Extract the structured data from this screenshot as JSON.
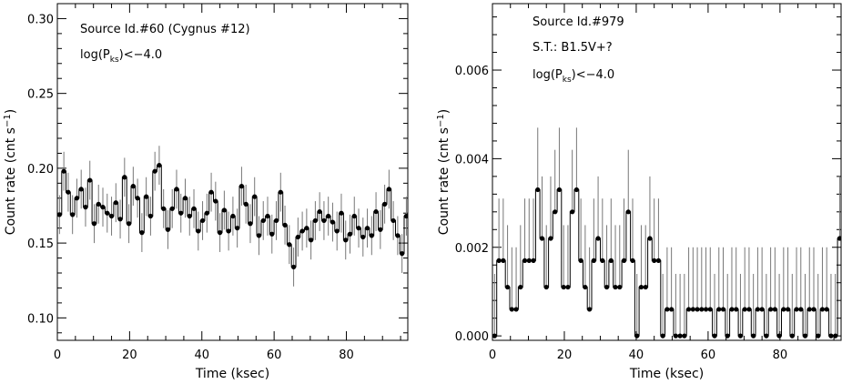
{
  "chart_data": [
    {
      "type": "line",
      "subtype": "binned-light-curve-with-error-bars",
      "title": "",
      "annotations": [
        "Source Id.#60 (Cygnus #12)",
        "log(P",
        "ks",
        ")<−4.0"
      ],
      "xlabel": "Time (ksec)",
      "ylabel": "Count rate (cnt s",
      "ylabel_sup": "−1",
      "ylabel_close": ")",
      "xlim": [
        0,
        97
      ],
      "ylim": [
        0.085,
        0.31
      ],
      "xticks": [
        0,
        20,
        40,
        60,
        80
      ],
      "yticks": [
        0.1,
        0.15,
        0.2,
        0.25,
        0.3
      ],
      "xticklabels": [
        "0",
        "20",
        "40",
        "60",
        "80"
      ],
      "yticklabels": [
        "0.10",
        "0.15",
        "0.20",
        "0.25",
        "0.30"
      ],
      "bin_width": 1.2,
      "grid": false,
      "series": [
        {
          "x": [
            0.6,
            1.8,
            3.0,
            4.2,
            5.4,
            6.6,
            7.8,
            9.0,
            10.2,
            11.4,
            12.6,
            13.8,
            15.0,
            16.2,
            17.4,
            18.6,
            19.8,
            21.0,
            22.2,
            23.4,
            24.6,
            25.8,
            27.0,
            28.2,
            29.4,
            30.6,
            31.8,
            33.0,
            34.2,
            35.4,
            36.6,
            37.8,
            39.0,
            40.2,
            41.4,
            42.6,
            43.8,
            45.0,
            46.2,
            47.4,
            48.6,
            49.8,
            51.0,
            52.2,
            53.4,
            54.6,
            55.8,
            57.0,
            58.2,
            59.4,
            60.6,
            61.8,
            63.0,
            64.2,
            65.4,
            66.6,
            67.8,
            69.0,
            70.2,
            71.4,
            72.6,
            73.8,
            75.0,
            76.2,
            77.4,
            78.6,
            79.8,
            81.0,
            82.2,
            83.4,
            84.6,
            85.8,
            87.0,
            88.2,
            89.4,
            90.6,
            91.8,
            93.0,
            94.2,
            95.4,
            96.6
          ],
          "y": [
            0.169,
            0.198,
            0.184,
            0.169,
            0.18,
            0.186,
            0.174,
            0.192,
            0.163,
            0.176,
            0.174,
            0.17,
            0.168,
            0.177,
            0.166,
            0.194,
            0.163,
            0.188,
            0.18,
            0.157,
            0.181,
            0.168,
            0.198,
            0.202,
            0.173,
            0.159,
            0.173,
            0.186,
            0.17,
            0.18,
            0.168,
            0.173,
            0.158,
            0.165,
            0.17,
            0.184,
            0.178,
            0.157,
            0.172,
            0.158,
            0.168,
            0.16,
            0.188,
            0.176,
            0.163,
            0.181,
            0.155,
            0.165,
            0.168,
            0.156,
            0.165,
            0.184,
            0.162,
            0.149,
            0.134,
            0.154,
            0.158,
            0.16,
            0.152,
            0.165,
            0.171,
            0.165,
            0.168,
            0.164,
            0.158,
            0.17,
            0.152,
            0.156,
            0.168,
            0.16,
            0.154,
            0.16,
            0.155,
            0.171,
            0.159,
            0.176,
            0.186,
            0.165,
            0.155,
            0.143,
            0.168
          ],
          "yerr": 0.013
        }
      ]
    },
    {
      "type": "line",
      "subtype": "binned-light-curve-with-error-bars",
      "title": "",
      "annotations": [
        "Source Id.#979",
        "S.T.: B1.5V+?",
        "log(P",
        "ks",
        ")<−4.0"
      ],
      "xlabel": "Time (ksec)",
      "ylabel": "Count rate (cnt s",
      "ylabel_sup": "−1",
      "ylabel_close": ")",
      "xlim": [
        0,
        97
      ],
      "ylim": [
        -0.0001,
        0.0075
      ],
      "xticks": [
        0,
        20,
        40,
        60,
        80
      ],
      "yticks": [
        0.0,
        0.002,
        0.004,
        0.006
      ],
      "xticklabels": [
        "0",
        "20",
        "40",
        "60",
        "80"
      ],
      "yticklabels": [
        "0.000",
        "0.002",
        "0.004",
        "0.006"
      ],
      "bin_width": 1.2,
      "grid": false,
      "series": [
        {
          "x": [
            0.6,
            1.8,
            3.0,
            4.2,
            5.4,
            6.6,
            7.8,
            9.0,
            10.2,
            11.4,
            12.6,
            13.8,
            15.0,
            16.2,
            17.4,
            18.6,
            19.8,
            21.0,
            22.2,
            23.4,
            24.6,
            25.8,
            27.0,
            28.2,
            29.4,
            30.6,
            31.8,
            33.0,
            34.2,
            35.4,
            36.6,
            37.8,
            39.0,
            40.2,
            41.4,
            42.6,
            43.8,
            45.0,
            46.2,
            47.4,
            48.6,
            49.8,
            51.0,
            52.2,
            53.4,
            54.6,
            55.8,
            57.0,
            58.2,
            59.4,
            60.6,
            61.8,
            63.0,
            64.2,
            65.4,
            66.6,
            67.8,
            69.0,
            70.2,
            71.4,
            72.6,
            73.8,
            75.0,
            76.2,
            77.4,
            78.6,
            79.8,
            81.0,
            82.2,
            83.4,
            84.6,
            85.8,
            87.0,
            88.2,
            89.4,
            90.6,
            91.8,
            93.0,
            94.2,
            95.4,
            96.6
          ],
          "y": [
            0.0,
            0.0017,
            0.0017,
            0.0011,
            0.0006,
            0.0006,
            0.0011,
            0.0017,
            0.0017,
            0.0017,
            0.0033,
            0.0022,
            0.0011,
            0.0022,
            0.0028,
            0.0033,
            0.0011,
            0.0011,
            0.0028,
            0.0033,
            0.0017,
            0.0011,
            0.0006,
            0.0017,
            0.0022,
            0.0017,
            0.0011,
            0.0017,
            0.0011,
            0.0011,
            0.0017,
            0.0028,
            0.0017,
            0.0,
            0.0011,
            0.0011,
            0.0022,
            0.0017,
            0.0017,
            0.0,
            0.0006,
            0.0006,
            0.0,
            0.0,
            0.0,
            0.0006,
            0.0006,
            0.0006,
            0.0006,
            0.0006,
            0.0006,
            0.0,
            0.0006,
            0.0006,
            0.0,
            0.0006,
            0.0006,
            0.0,
            0.0006,
            0.0006,
            0.0,
            0.0006,
            0.0006,
            0.0,
            0.0006,
            0.0006,
            0.0,
            0.0006,
            0.0006,
            0.0,
            0.0006,
            0.0006,
            0.0,
            0.0006,
            0.0006,
            0.0,
            0.0006,
            0.0006,
            0.0,
            0.0,
            0.0022
          ],
          "yerr_pos": 0.0014
        }
      ]
    }
  ]
}
